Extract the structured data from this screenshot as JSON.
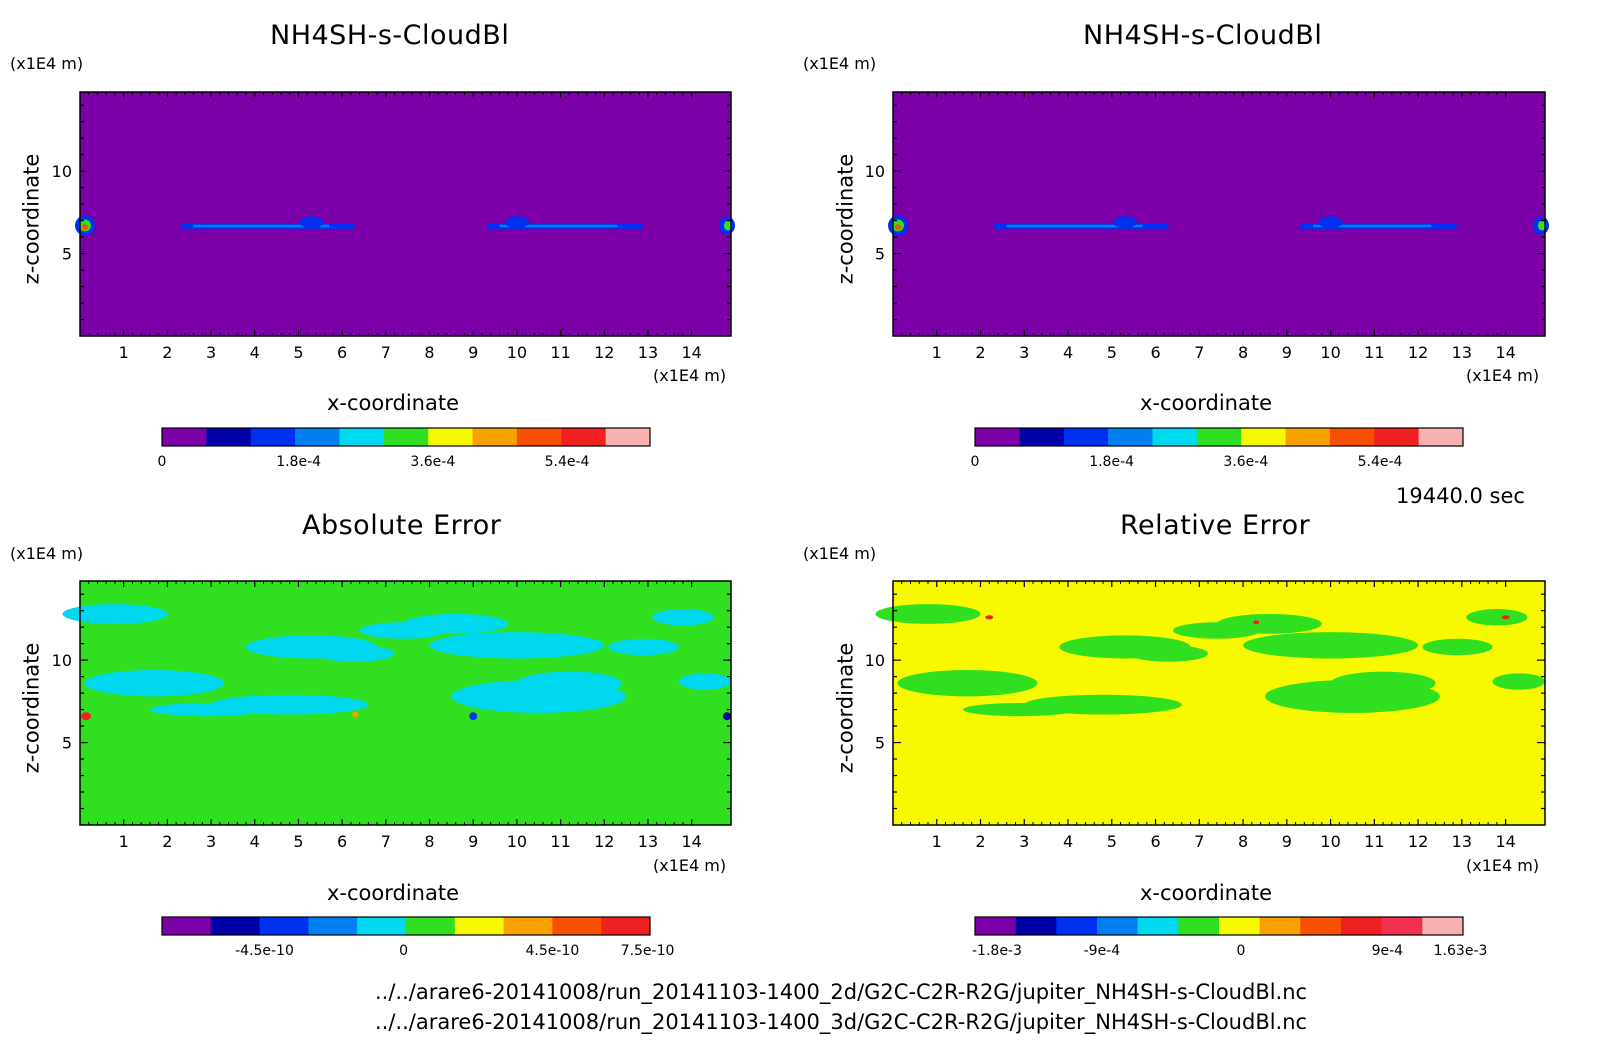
{
  "panels": [
    {
      "title": "NH4SH-s-CloudBl",
      "unit_y": "(x1E4 m)",
      "unit_x": "(x1E4 m)",
      "xlabel": "x-coordinate",
      "ylabel": "z-coordinate",
      "colorbar_ticks": [
        "0",
        "1.8e-4",
        "3.6e-4",
        "5.4e-4"
      ]
    },
    {
      "title": "NH4SH-s-CloudBl",
      "unit_y": "(x1E4 m)",
      "unit_x": "(x1E4 m)",
      "xlabel": "x-coordinate",
      "ylabel": "z-coordinate",
      "colorbar_ticks": [
        "0",
        "1.8e-4",
        "3.6e-4",
        "5.4e-4"
      ]
    },
    {
      "title": "Absolute Error",
      "unit_y": "(x1E4 m)",
      "unit_x": "(x1E4 m)",
      "xlabel": "x-coordinate",
      "ylabel": "z-coordinate",
      "colorbar_ticks": [
        "-4.5e-10",
        "0",
        "4.5e-10",
        "7.5e-10"
      ]
    },
    {
      "title": "Relative Error",
      "unit_y": "(x1E4 m)",
      "unit_x": "(x1E4 m)",
      "xlabel": "x-coordinate",
      "ylabel": "z-coordinate",
      "colorbar_ticks": [
        "-1.8e-3",
        "-9e-4",
        "0",
        "9e-4",
        "1.63e-3"
      ]
    }
  ],
  "time_label": "19440.0 sec",
  "footer": {
    "path_2d": "../../arare6-20141008/run_20141103-1400_2d/G2C-C2R-R2G/jupiter_NH4SH-s-CloudBl.nc",
    "path_3d": "../../arare6-20141008/run_20141103-1400_3d/G2C-C2R-R2G/jupiter_NH4SH-s-CloudBl.nc"
  },
  "chart_data": [
    {
      "type": "heatmap",
      "title": "NH4SH-s-CloudBl",
      "xlabel": "x-coordinate",
      "ylabel": "z-coordinate",
      "x_ticks": [
        1,
        2,
        3,
        4,
        5,
        6,
        7,
        8,
        9,
        10,
        11,
        12,
        13,
        14
      ],
      "y_ticks": [
        5,
        10
      ],
      "xlim": [
        0,
        14.9
      ],
      "ylim": [
        0,
        14.8
      ],
      "background_color": "#7c00a8",
      "colorbar": {
        "tick_labels": [
          "0",
          "1.8e-4",
          "3.6e-4",
          "5.4e-4"
        ],
        "colors": [
          "#7c00a8",
          "#0000a8",
          "#0030f0",
          "#0080f0",
          "#00d8f0",
          "#30e020",
          "#f8f800",
          "#f8a000",
          "#f85000",
          "#f02020",
          "#f8b0b0"
        ]
      }
    },
    {
      "type": "heatmap",
      "title": "NH4SH-s-CloudBl",
      "xlabel": "x-coordinate",
      "ylabel": "z-coordinate",
      "x_ticks": [
        1,
        2,
        3,
        4,
        5,
        6,
        7,
        8,
        9,
        10,
        11,
        12,
        13,
        14
      ],
      "y_ticks": [
        5,
        10
      ],
      "xlim": [
        0,
        14.9
      ],
      "ylim": [
        0,
        14.8
      ],
      "background_color": "#7c00a8",
      "colorbar": {
        "tick_labels": [
          "0",
          "1.8e-4",
          "3.6e-4",
          "5.4e-4"
        ],
        "colors": [
          "#7c00a8",
          "#0000a8",
          "#0030f0",
          "#0080f0",
          "#00d8f0",
          "#30e020",
          "#f8f800",
          "#f8a000",
          "#f85000",
          "#f02020",
          "#f8b0b0"
        ]
      }
    },
    {
      "type": "heatmap",
      "title": "Absolute Error",
      "xlabel": "x-coordinate",
      "ylabel": "z-coordinate",
      "x_ticks": [
        1,
        2,
        3,
        4,
        5,
        6,
        7,
        8,
        9,
        10,
        11,
        12,
        13,
        14
      ],
      "y_ticks": [
        5,
        10
      ],
      "xlim": [
        0,
        14.9
      ],
      "ylim": [
        0,
        14.8
      ],
      "background_color": "#30e020",
      "colorbar": {
        "tick_labels": [
          "-4.5e-10",
          "0",
          "4.5e-10",
          "7.5e-10"
        ],
        "colors": [
          "#7c00a8",
          "#0000a8",
          "#0030f0",
          "#0080f0",
          "#00d8f0",
          "#30e020",
          "#f8f800",
          "#f8a000",
          "#f85000",
          "#f02020"
        ]
      }
    },
    {
      "type": "heatmap",
      "title": "Relative Error",
      "xlabel": "x-coordinate",
      "ylabel": "z-coordinate",
      "x_ticks": [
        1,
        2,
        3,
        4,
        5,
        6,
        7,
        8,
        9,
        10,
        11,
        12,
        13,
        14
      ],
      "y_ticks": [
        5,
        10
      ],
      "xlim": [
        0,
        14.9
      ],
      "ylim": [
        0,
        14.8
      ],
      "background_color": "#f8f800",
      "colorbar": {
        "tick_labels": [
          "-1.8e-3",
          "-9e-4",
          "0",
          "9e-4",
          "1.63e-3"
        ],
        "colors": [
          "#7c00a8",
          "#0000a8",
          "#0030f0",
          "#0080f0",
          "#00d8f0",
          "#30e020",
          "#f8f800",
          "#f8a000",
          "#f85000",
          "#f02020",
          "#f03050",
          "#f8b0b0"
        ]
      }
    }
  ]
}
